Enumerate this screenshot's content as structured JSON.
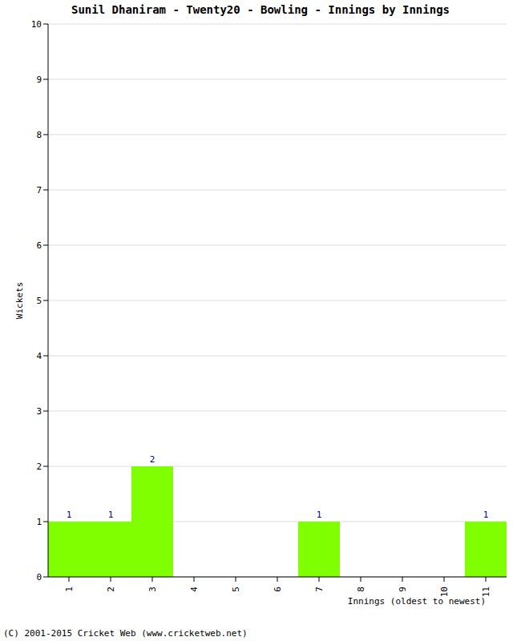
{
  "chart_data": {
    "type": "bar",
    "title": "Sunil Dhaniram - Twenty20 - Bowling - Innings by Innings",
    "x_label": "Innings (oldest to newest)",
    "y_label": "Wickets",
    "footer": "(C) 2001-2015 Cricket Web (www.cricketweb.net)",
    "categories": [
      "1",
      "2",
      "3",
      "4",
      "5",
      "6",
      "7",
      "8",
      "9",
      "10",
      "11"
    ],
    "values": [
      1,
      1,
      2,
      0,
      0,
      0,
      1,
      0,
      0,
      0,
      1
    ],
    "color": "#7fff00",
    "ylim": [
      0,
      10
    ],
    "yticks": [
      0,
      1,
      2,
      3,
      4,
      5,
      6,
      7,
      8,
      9,
      10
    ],
    "grid": true,
    "data_labels": true
  }
}
